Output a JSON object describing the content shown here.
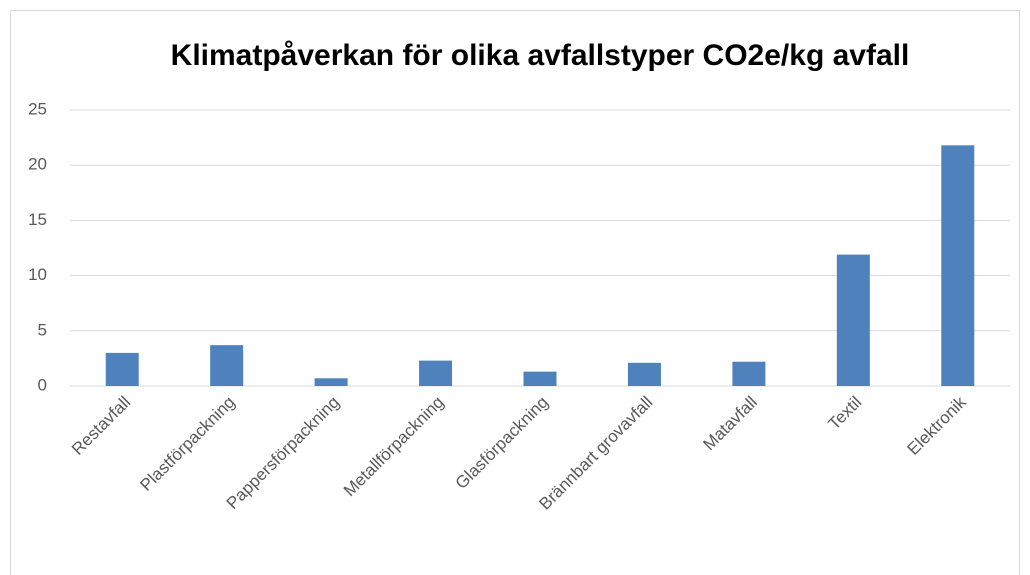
{
  "chart_data": {
    "type": "bar",
    "title": "Klimatpåverkan för olika avfallstyper CO2e/kg avfall",
    "categories": [
      "Restavfall",
      "Plastförpackning",
      "Pappersförpackning",
      "Metallförpackning",
      "Glasförpackning",
      "Brännbart grovavfall",
      "Matavfall",
      "Textil",
      "Elektronik"
    ],
    "values": [
      3.0,
      3.7,
      0.7,
      2.3,
      1.3,
      2.1,
      2.2,
      11.9,
      21.8
    ],
    "color": "#4f81bd",
    "ylim": [
      0,
      25
    ],
    "yticks": [
      0,
      5,
      10,
      15,
      20,
      25
    ],
    "grid": true
  }
}
